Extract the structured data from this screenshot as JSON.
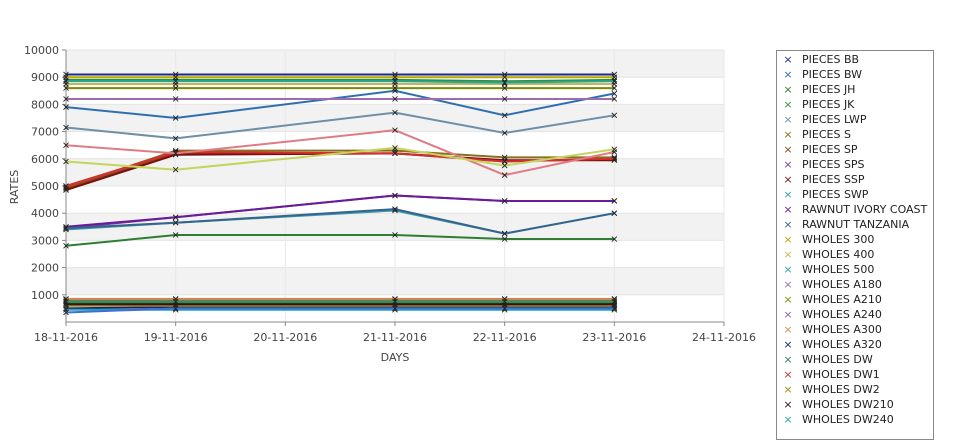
{
  "chart_data": {
    "type": "line",
    "xlabel": "DAYS",
    "ylabel": "RATES",
    "x_ticks": [
      "18-11-2016",
      "19-11-2016",
      "20-11-2016",
      "21-11-2016",
      "22-11-2016",
      "23-11-2016",
      "24-11-2016"
    ],
    "x": [
      "18-11-2016",
      "19-11-2016",
      "21-11-2016",
      "22-11-2016",
      "23-11-2016"
    ],
    "ylim": [
      0,
      10000
    ],
    "y_ticks": [
      1000,
      2000,
      3000,
      4000,
      5000,
      6000,
      7000,
      8000,
      9000,
      10000
    ],
    "grid": true,
    "legend_position": "right",
    "series": [
      {
        "name": "PIECES BB",
        "color": "#1f2a8c",
        "values": [
          9100,
          9100,
          9100,
          9100,
          9100
        ]
      },
      {
        "name": "PIECES BW",
        "color": "#2f6fb0",
        "values": [
          7900,
          7500,
          8500,
          7600,
          8400
        ]
      },
      {
        "name": "PIECES JH",
        "color": "#2e7d32",
        "values": [
          2800,
          3200,
          3200,
          3050,
          3050
        ]
      },
      {
        "name": "PIECES JK",
        "color": "#2f8f3a",
        "values": [
          8900,
          8900,
          8900,
          8850,
          8900
        ]
      },
      {
        "name": "PIECES LWP",
        "color": "#6e8fa8",
        "values": [
          7150,
          6750,
          7700,
          6950,
          7600
        ]
      },
      {
        "name": "PIECES S",
        "color": "#8a6f1e",
        "values": [
          4950,
          6300,
          6300,
          6050,
          6050
        ]
      },
      {
        "name": "PIECES SP",
        "color": "#8b4513",
        "values": [
          4900,
          6200,
          6200,
          5900,
          6000
        ]
      },
      {
        "name": "PIECES SPS",
        "color": "#7b3a9a",
        "values": [
          3450,
          3850,
          4650,
          4450,
          4450
        ]
      },
      {
        "name": "PIECES SSP",
        "color": "#7a0f0f",
        "values": [
          4850,
          6150,
          6200,
          5950,
          5950
        ]
      },
      {
        "name": "PIECES SWP",
        "color": "#3a9ab0",
        "values": [
          3400,
          3650,
          4100,
          3250,
          4000
        ]
      },
      {
        "name": "RAWNUT IVORY COAST",
        "color": "#6a1b9a",
        "values": [
          3500,
          3850,
          4650,
          4450,
          4450
        ]
      },
      {
        "name": "RAWNUT TANZANIA",
        "color": "#37648a",
        "values": [
          3450,
          3650,
          4150,
          3250,
          4000
        ]
      },
      {
        "name": "WHOLES 300",
        "color": "#b8a800",
        "values": [
          9000,
          9000,
          9000,
          9000,
          9000
        ]
      },
      {
        "name": "WHOLES 400",
        "color": "#c9b458",
        "values": [
          8750,
          8750,
          8750,
          8750,
          8750
        ]
      },
      {
        "name": "WHOLES 500",
        "color": "#2aa79b",
        "values": [
          8850,
          8850,
          8850,
          8800,
          8850
        ]
      },
      {
        "name": "WHOLES A180",
        "color": "#9c6bb0",
        "values": [
          8200,
          8200,
          8200,
          8200,
          8200
        ]
      },
      {
        "name": "WHOLES A210",
        "color": "#7a8a00",
        "values": [
          8600,
          8600,
          8600,
          8600,
          8600
        ]
      },
      {
        "name": "WHOLES A240",
        "color": "#8a5bb5",
        "values": [
          800,
          800,
          800,
          800,
          800
        ]
      },
      {
        "name": "WHOLES A300",
        "color": "#d08a4a",
        "values": [
          850,
          850,
          850,
          850,
          850
        ]
      },
      {
        "name": "WHOLES A320",
        "color": "#1a237e",
        "values": [
          500,
          550,
          550,
          550,
          550
        ]
      },
      {
        "name": "WHOLES DW",
        "color": "#2e7d5a",
        "values": [
          700,
          700,
          700,
          700,
          700
        ]
      },
      {
        "name": "WHOLES DW1",
        "color": "#d32f2f",
        "values": [
          5000,
          6250,
          6200,
          5900,
          6000
        ]
      },
      {
        "name": "WHOLES DW2",
        "color": "#a08a10",
        "values": [
          600,
          600,
          600,
          600,
          600
        ]
      },
      {
        "name": "WHOLES DW210",
        "color": "#3a0f0f",
        "values": [
          650,
          650,
          650,
          650,
          650
        ]
      },
      {
        "name": "WHOLES DW240",
        "color": "#26a6a6",
        "values": [
          450,
          450,
          450,
          450,
          450
        ]
      },
      {
        "name": "",
        "color": "#e07b86",
        "values": [
          6500,
          6200,
          7050,
          5400,
          6250
        ]
      },
      {
        "name": "",
        "color": "#c5d45a",
        "values": [
          5900,
          5600,
          6400,
          5750,
          6350
        ]
      },
      {
        "name": "",
        "color": "#2e9a44",
        "values": [
          750,
          750,
          750,
          750,
          750
        ]
      },
      {
        "name": "",
        "color": "#3b6fe0",
        "values": [
          350,
          500,
          500,
          500,
          500
        ]
      }
    ]
  }
}
